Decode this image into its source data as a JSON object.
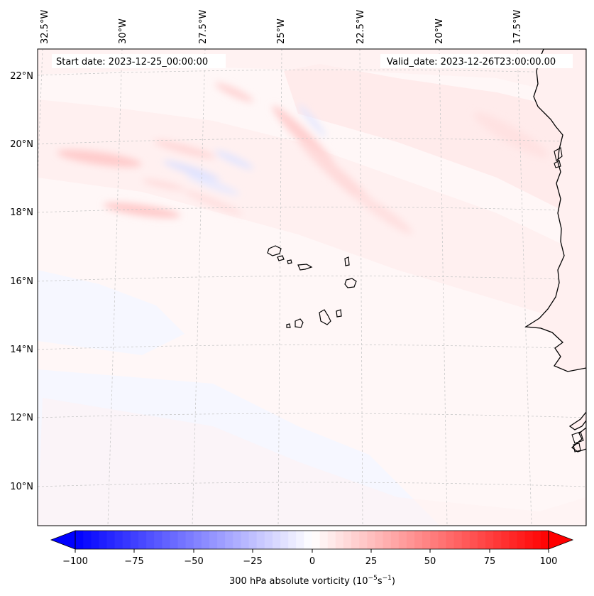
{
  "map": {
    "start_label": "Start date: 2023-12-25_00:00:00",
    "valid_label": "Valid_date: 2023-12-26T23:00:00.00",
    "lon_labels": [
      "32.5°W",
      "30°W",
      "27.5°W",
      "25°W",
      "22.5°W",
      "20°W",
      "17.5°W"
    ],
    "lat_labels": [
      "22°N",
      "20°N",
      "18°N",
      "16°N",
      "14°N",
      "12°N",
      "10°N"
    ],
    "field": "300 hPa absolute vorticity",
    "region": {
      "lon_range": [
        -33,
        -16
      ],
      "lat_range": [
        9,
        23
      ]
    },
    "gridlines": true,
    "colormap": "bwr"
  },
  "colorbar": {
    "ticks": [
      "−100",
      "−75",
      "−50",
      "−25",
      "0",
      "25",
      "50",
      "75",
      "100"
    ],
    "label_main": "300 hPa absolute vorticity (10",
    "label_exp1": "−5",
    "label_mid": "s",
    "label_exp2": "−1",
    "label_end": ")",
    "min": -100,
    "max": 100,
    "levels": 60,
    "extend": "both"
  }
}
